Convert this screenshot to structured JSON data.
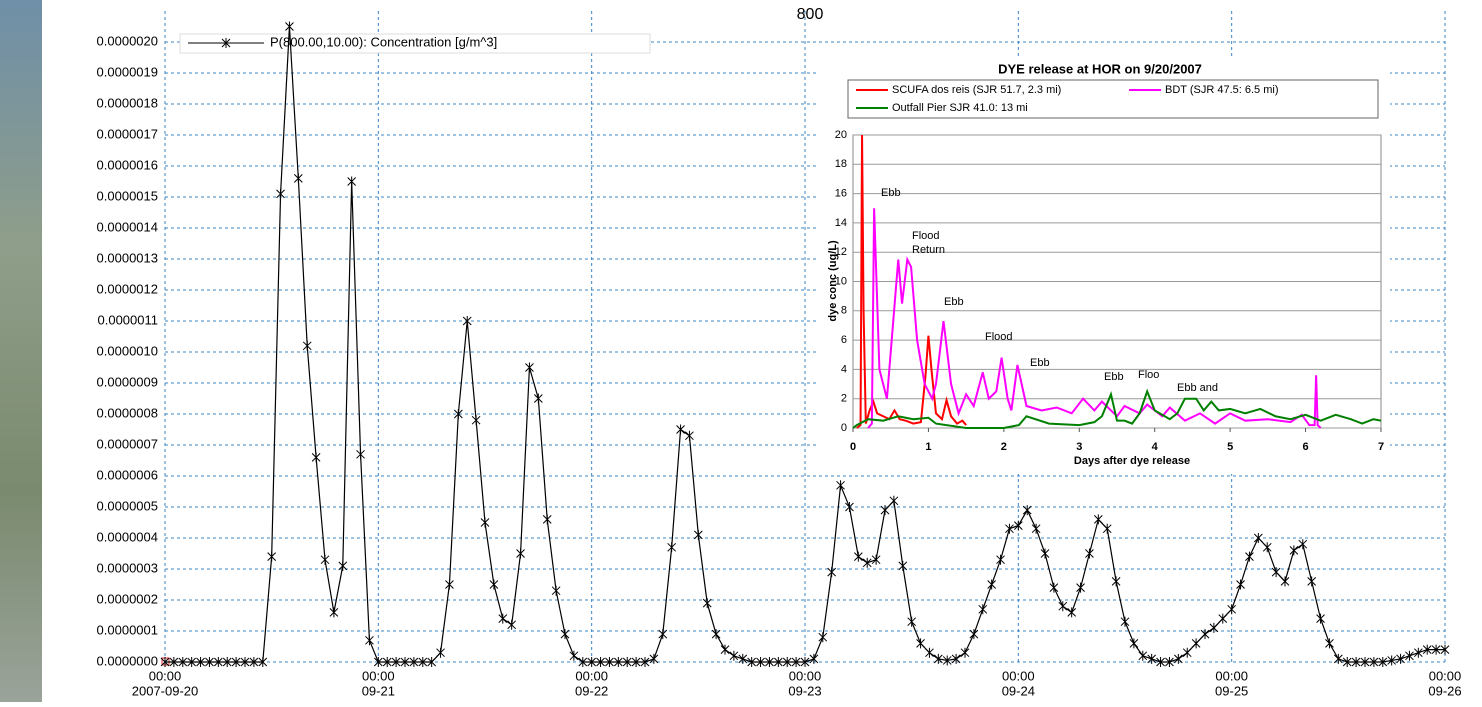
{
  "chart_data": [
    {
      "type": "line",
      "title": "800",
      "x": [
        "2007-09-20 00:00",
        "2007-09-20 01:00",
        "2007-09-20 02:00",
        "2007-09-20 03:00",
        "2007-09-20 04:00",
        "2007-09-20 05:00",
        "2007-09-20 06:00",
        "2007-09-20 07:00",
        "2007-09-20 08:00",
        "2007-09-20 09:00",
        "2007-09-20 10:00",
        "2007-09-20 11:00",
        "2007-09-20 12:00",
        "2007-09-20 13:00",
        "2007-09-20 14:00",
        "2007-09-20 15:00",
        "2007-09-20 16:00",
        "2007-09-20 17:00",
        "2007-09-20 18:00",
        "2007-09-20 19:00",
        "2007-09-20 20:00",
        "2007-09-20 21:00",
        "2007-09-20 22:00",
        "2007-09-20 23:00",
        "2007-09-21 00:00",
        "2007-09-21 01:00",
        "2007-09-21 02:00",
        "2007-09-21 03:00",
        "2007-09-21 04:00",
        "2007-09-21 05:00",
        "2007-09-21 06:00",
        "2007-09-21 07:00",
        "2007-09-21 08:00",
        "2007-09-21 09:00",
        "2007-09-21 10:00",
        "2007-09-21 11:00",
        "2007-09-21 12:00",
        "2007-09-21 13:00",
        "2007-09-21 14:00",
        "2007-09-21 15:00",
        "2007-09-21 16:00",
        "2007-09-21 17:00",
        "2007-09-21 18:00",
        "2007-09-21 19:00",
        "2007-09-21 20:00",
        "2007-09-21 21:00",
        "2007-09-21 22:00",
        "2007-09-21 23:00",
        "2007-09-22 00:00",
        "2007-09-22 01:00",
        "2007-09-22 02:00",
        "2007-09-22 03:00",
        "2007-09-22 04:00",
        "2007-09-22 05:00",
        "2007-09-22 06:00",
        "2007-09-22 07:00",
        "2007-09-22 08:00",
        "2007-09-22 09:00",
        "2007-09-22 10:00",
        "2007-09-22 11:00",
        "2007-09-22 12:00",
        "2007-09-22 13:00",
        "2007-09-22 14:00",
        "2007-09-22 15:00",
        "2007-09-22 16:00",
        "2007-09-22 17:00",
        "2007-09-22 18:00",
        "2007-09-22 19:00",
        "2007-09-22 20:00",
        "2007-09-22 21:00",
        "2007-09-22 22:00",
        "2007-09-22 23:00",
        "2007-09-23 00:00",
        "2007-09-23 01:00",
        "2007-09-23 02:00",
        "2007-09-23 03:00",
        "2007-09-23 04:00",
        "2007-09-23 05:00",
        "2007-09-23 06:00",
        "2007-09-23 07:00",
        "2007-09-23 08:00",
        "2007-09-23 09:00",
        "2007-09-23 10:00",
        "2007-09-23 11:00",
        "2007-09-23 12:00",
        "2007-09-23 13:00",
        "2007-09-23 14:00",
        "2007-09-23 15:00",
        "2007-09-23 16:00",
        "2007-09-23 17:00",
        "2007-09-23 18:00",
        "2007-09-23 19:00",
        "2007-09-23 20:00",
        "2007-09-23 21:00",
        "2007-09-23 22:00",
        "2007-09-23 23:00",
        "2007-09-24 00:00",
        "2007-09-24 01:00",
        "2007-09-24 02:00",
        "2007-09-24 03:00",
        "2007-09-24 04:00",
        "2007-09-24 05:00",
        "2007-09-24 06:00",
        "2007-09-24 07:00",
        "2007-09-24 08:00",
        "2007-09-24 09:00",
        "2007-09-24 10:00",
        "2007-09-24 11:00",
        "2007-09-24 12:00",
        "2007-09-24 13:00",
        "2007-09-24 14:00",
        "2007-09-24 15:00",
        "2007-09-24 16:00",
        "2007-09-24 17:00",
        "2007-09-24 18:00",
        "2007-09-24 19:00",
        "2007-09-24 20:00",
        "2007-09-24 21:00",
        "2007-09-24 22:00",
        "2007-09-24 23:00",
        "2007-09-25 00:00",
        "2007-09-25 01:00",
        "2007-09-25 02:00",
        "2007-09-25 03:00",
        "2007-09-25 04:00",
        "2007-09-25 05:00",
        "2007-09-25 06:00",
        "2007-09-25 07:00",
        "2007-09-25 08:00",
        "2007-09-25 09:00",
        "2007-09-25 10:00",
        "2007-09-25 11:00",
        "2007-09-25 12:00",
        "2007-09-25 13:00",
        "2007-09-25 14:00",
        "2007-09-25 15:00",
        "2007-09-25 16:00",
        "2007-09-25 17:00",
        "2007-09-25 18:00",
        "2007-09-25 19:00",
        "2007-09-25 20:00",
        "2007-09-25 21:00",
        "2007-09-25 22:00",
        "2007-09-25 23:00",
        "2007-09-26 00:00"
      ],
      "series": [
        {
          "name": "P(800.00,10.00): Concentration [g/m^3]",
          "color": "#000000",
          "marker": "x",
          "values": [
            0,
            0,
            0,
            0,
            0,
            0,
            0,
            0,
            0,
            0,
            0,
            0,
            3.4e-07,
            1.51e-06,
            2.05e-06,
            1.56e-06,
            1.02e-06,
            6.6e-07,
            3.3e-07,
            1.6e-07,
            3.1e-07,
            1.55e-06,
            6.7e-07,
            7e-08,
            0,
            0,
            0,
            0,
            0,
            0,
            0,
            3e-08,
            2.5e-07,
            8e-07,
            1.1e-06,
            7.8e-07,
            4.5e-07,
            2.5e-07,
            1.4e-07,
            1.2e-07,
            3.5e-07,
            9.5e-07,
            8.5e-07,
            4.6e-07,
            2.3e-07,
            9e-08,
            2e-08,
            0,
            0,
            0,
            0,
            0,
            0,
            0,
            0,
            1e-08,
            9e-08,
            3.7e-07,
            7.5e-07,
            7.3e-07,
            4.1e-07,
            1.9e-07,
            9e-08,
            4e-08,
            2e-08,
            1e-08,
            0,
            0,
            0,
            0,
            0,
            0,
            0,
            1e-08,
            8e-08,
            2.9e-07,
            5.7e-07,
            5e-07,
            3.4e-07,
            3.2e-07,
            3.3e-07,
            4.9e-07,
            5.2e-07,
            3.1e-07,
            1.3e-07,
            6e-08,
            3e-08,
            1e-08,
            5e-09,
            1e-08,
            3e-08,
            9e-08,
            1.7e-07,
            2.5e-07,
            3.3e-07,
            4.3e-07,
            4.4e-07,
            4.9e-07,
            4.3e-07,
            3.5e-07,
            2.4e-07,
            1.8e-07,
            1.6e-07,
            2.4e-07,
            3.5e-07,
            4.6e-07,
            4.3e-07,
            2.6e-07,
            1.3e-07,
            6e-08,
            2e-08,
            1e-08,
            0,
            0,
            1e-08,
            3e-08,
            6e-08,
            9e-08,
            1.1e-07,
            1.4e-07,
            1.7e-07,
            2.5e-07,
            3.4e-07,
            4e-07,
            3.7e-07,
            2.9e-07,
            2.6e-07,
            3.6e-07,
            3.8e-07,
            2.6e-07,
            1.4e-07,
            6e-08,
            1e-08,
            0,
            0,
            0,
            0,
            0,
            5e-09,
            1e-08,
            2e-08,
            3e-08,
            4e-08,
            4e-08,
            4e-08
          ]
        }
      ],
      "xlim": [
        "2007-09-20 00:00",
        "2007-09-26 00:00"
      ],
      "xticks": [
        {
          "value": "2007-09-20 00:00",
          "label": [
            "00:00",
            "2007-09-20"
          ]
        },
        {
          "value": "2007-09-21 00:00",
          "label": [
            "00:00",
            "09-21"
          ]
        },
        {
          "value": "2007-09-22 00:00",
          "label": [
            "00:00",
            "09-22"
          ]
        },
        {
          "value": "2007-09-23 00:00",
          "label": [
            "00:00",
            "09-23"
          ]
        },
        {
          "value": "2007-09-24 00:00",
          "label": [
            "00:00",
            "09-24"
          ]
        },
        {
          "value": "2007-09-25 00:00",
          "label": [
            "00:00",
            "09-25"
          ]
        },
        {
          "value": "2007-09-26 00:00",
          "label": [
            "00:00",
            "09-26"
          ]
        }
      ],
      "ylim": [
        0,
        2.1e-06
      ],
      "yticks": [
        {
          "value": 0,
          "label": "0.0000000"
        },
        {
          "value": 1e-07,
          "label": "0.0000001"
        },
        {
          "value": 2e-07,
          "label": "0.0000002"
        },
        {
          "value": 3e-07,
          "label": "0.0000003"
        },
        {
          "value": 4e-07,
          "label": "0.0000004"
        },
        {
          "value": 5e-07,
          "label": "0.0000005"
        },
        {
          "value": 6e-07,
          "label": "0.0000006"
        },
        {
          "value": 7e-07,
          "label": "0.0000007"
        },
        {
          "value": 8e-07,
          "label": "0.0000008"
        },
        {
          "value": 9e-07,
          "label": "0.0000009"
        },
        {
          "value": 1e-06,
          "label": "0.0000010"
        },
        {
          "value": 1.1e-06,
          "label": "0.0000011"
        },
        {
          "value": 1.2e-06,
          "label": "0.0000012"
        },
        {
          "value": 1.3e-06,
          "label": "0.0000013"
        },
        {
          "value": 1.4e-06,
          "label": "0.0000014"
        },
        {
          "value": 1.5e-06,
          "label": "0.0000015"
        },
        {
          "value": 1.6e-06,
          "label": "0.0000016"
        },
        {
          "value": 1.7e-06,
          "label": "0.0000017"
        },
        {
          "value": 1.8e-06,
          "label": "0.0000018"
        },
        {
          "value": 1.9e-06,
          "label": "0.0000019"
        },
        {
          "value": 2e-06,
          "label": "0.0000020"
        }
      ],
      "grid": true
    },
    {
      "type": "line",
      "title": "DYE release at HOR on 9/20/2007",
      "x_label": "Days after dye release",
      "y_label": "dye conc (ug/L)",
      "series": [
        {
          "name": "SCUFA dos reis (SJR 51.7, 2.3 mi)",
          "color": "#ff0000",
          "x": [
            0.05,
            0.1,
            0.12,
            0.14,
            0.17,
            0.22,
            0.27,
            0.32,
            0.4,
            0.48,
            0.55,
            0.62,
            0.7,
            0.8,
            0.9,
            0.96,
            1.0,
            1.04,
            1.1,
            1.18,
            1.24,
            1.3,
            1.38,
            1.45,
            1.5
          ],
          "values": [
            0,
            0.2,
            20,
            8,
            0.3,
            1.2,
            1.8,
            1.0,
            0.8,
            0.6,
            1.2,
            0.6,
            0.5,
            0.3,
            0.4,
            3.5,
            6.3,
            4.0,
            1.0,
            0.6,
            1.9,
            0.8,
            0.3,
            0.5,
            0.2
          ]
        },
        {
          "name": "BDT (SJR 47.5: 6.5 mi)",
          "color": "#ff00ff",
          "x": [
            0.2,
            0.25,
            0.28,
            0.35,
            0.45,
            0.6,
            0.65,
            0.72,
            0.77,
            0.85,
            0.95,
            1.05,
            1.1,
            1.2,
            1.3,
            1.4,
            1.5,
            1.6,
            1.72,
            1.8,
            1.9,
            1.97,
            2.05,
            2.1,
            2.18,
            2.3,
            2.5,
            2.7,
            2.9,
            3.05,
            3.2,
            3.3,
            3.5,
            3.6,
            3.8,
            3.9,
            4.1,
            4.2,
            4.4,
            4.6,
            4.8,
            5.0,
            5.2,
            5.5,
            5.8,
            5.95,
            6.05,
            6.12,
            6.14,
            6.16,
            6.2
          ],
          "values": [
            0,
            0.3,
            15,
            4,
            2,
            11.5,
            8.5,
            11.5,
            11,
            6,
            3,
            2,
            3,
            7.3,
            3,
            1,
            2.3,
            1.5,
            3.8,
            2,
            2.5,
            4.8,
            2,
            1.2,
            4.3,
            1.5,
            1.2,
            1.4,
            1,
            2,
            1.2,
            1.8,
            0.8,
            1.5,
            1,
            1.6,
            0.8,
            1.4,
            0.5,
            1,
            0.3,
            1,
            0.5,
            0.6,
            0.4,
            0.9,
            0.2,
            0.2,
            3.6,
            0.2,
            0
          ]
        },
        {
          "name": "Outfall Pier SJR 41.0: 13 mi",
          "color": "#008000",
          "x": [
            0,
            0.05,
            0.2,
            0.4,
            0.6,
            0.8,
            1.0,
            1.1,
            1.5,
            2.0,
            2.2,
            2.3,
            2.6,
            3.0,
            3.2,
            3.3,
            3.42,
            3.5,
            3.6,
            3.7,
            3.8,
            3.9,
            4.0,
            4.2,
            4.3,
            4.4,
            4.55,
            4.65,
            4.75,
            4.85,
            5.0,
            5.2,
            5.4,
            5.6,
            5.8,
            6.0,
            6.2,
            6.4,
            6.6,
            6.75,
            6.9,
            7.0
          ],
          "values": [
            0,
            0.2,
            0.6,
            0.5,
            0.8,
            0.6,
            0.7,
            0.3,
            0,
            0,
            0.2,
            0.8,
            0.3,
            0.2,
            0.4,
            0.8,
            2.3,
            0.5,
            0.5,
            0.3,
            1.0,
            2.5,
            1.2,
            0.6,
            1.0,
            2.0,
            2.0,
            1.2,
            1.8,
            1.2,
            1.3,
            1.0,
            1.3,
            0.8,
            0.6,
            0.9,
            0.5,
            0.9,
            0.6,
            0.3,
            0.6,
            0.5
          ]
        }
      ],
      "annotations": [
        "Ebb",
        "Flood",
        "Return",
        "Ebb",
        "Flood",
        "Ebb",
        "Ebb",
        "Floo",
        "Ebb and"
      ],
      "xlim": [
        0,
        7
      ],
      "xticks": [
        0,
        1,
        2,
        3,
        4,
        5,
        6,
        7
      ],
      "ylim": [
        0,
        20
      ],
      "yticks": [
        0,
        2,
        4,
        6,
        8,
        10,
        12,
        14,
        16,
        18,
        20
      ],
      "grid": "y"
    }
  ]
}
